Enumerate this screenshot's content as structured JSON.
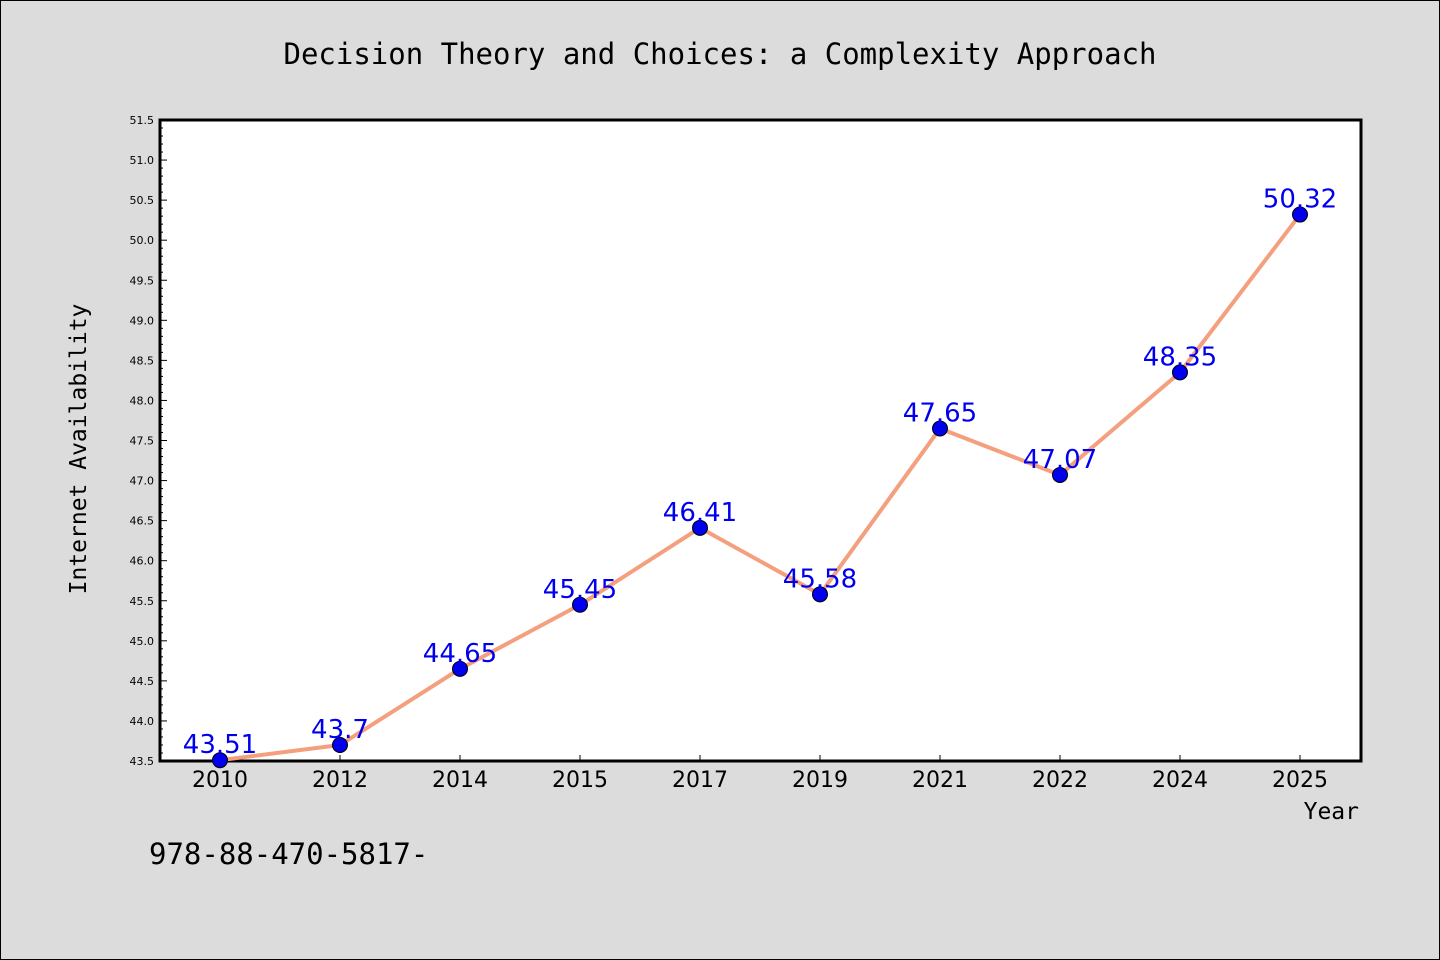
{
  "chart_data": {
    "type": "line",
    "title": "Decision Theory and Choices: a Complexity Approach",
    "xlabel": "Year",
    "ylabel": "Internet Availability",
    "categories": [
      "2010",
      "2012",
      "2014",
      "2015",
      "2017",
      "2019",
      "2021",
      "2022",
      "2024",
      "2025"
    ],
    "series": [
      {
        "values": [
          43.51,
          43.7,
          44.65,
          45.45,
          46.41,
          45.58,
          47.65,
          47.07,
          48.35,
          50.32
        ],
        "data_labels": [
          "43.51",
          "43.7",
          "44.65",
          "45.45",
          "46.41",
          "45.58",
          "47.65",
          "47.07",
          "48.35",
          "50.32"
        ]
      }
    ],
    "yticks": [
      "43.5",
      "44.0",
      "44.5",
      "45.0",
      "45.5",
      "46.0",
      "46.5",
      "47.0",
      "47.5",
      "48.0",
      "48.5",
      "49.0",
      "49.5",
      "50.0",
      "50.5",
      "51.0",
      "51.5"
    ],
    "ylim": [
      43.5,
      51.5
    ],
    "grid": false,
    "line_color": "#f4a07e",
    "marker_color": "#0000ee",
    "label_color": "#0000ee",
    "background": "#dcdcdc",
    "plot_background": "#ffffff"
  },
  "footer_text": "978-88-470-5817-"
}
